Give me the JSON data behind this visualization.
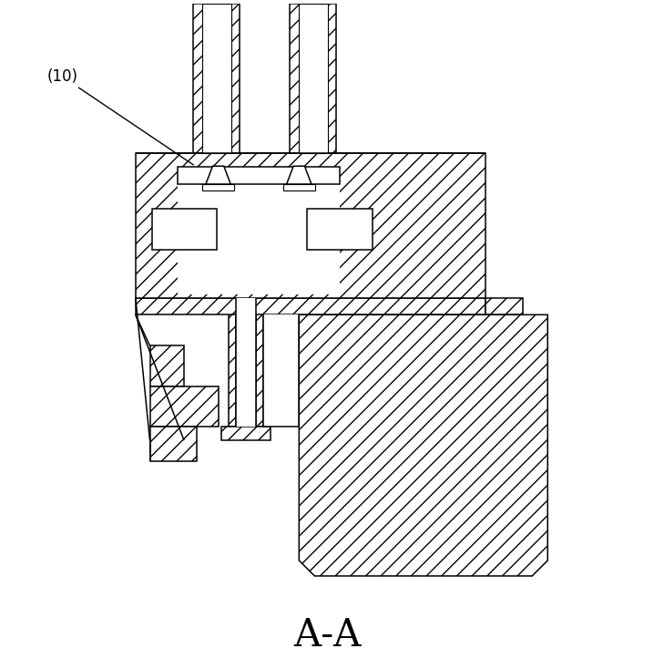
{
  "title": "A-A",
  "label": "(10)",
  "fig_width": 7.18,
  "fig_height": 7.23,
  "dpi": 100
}
